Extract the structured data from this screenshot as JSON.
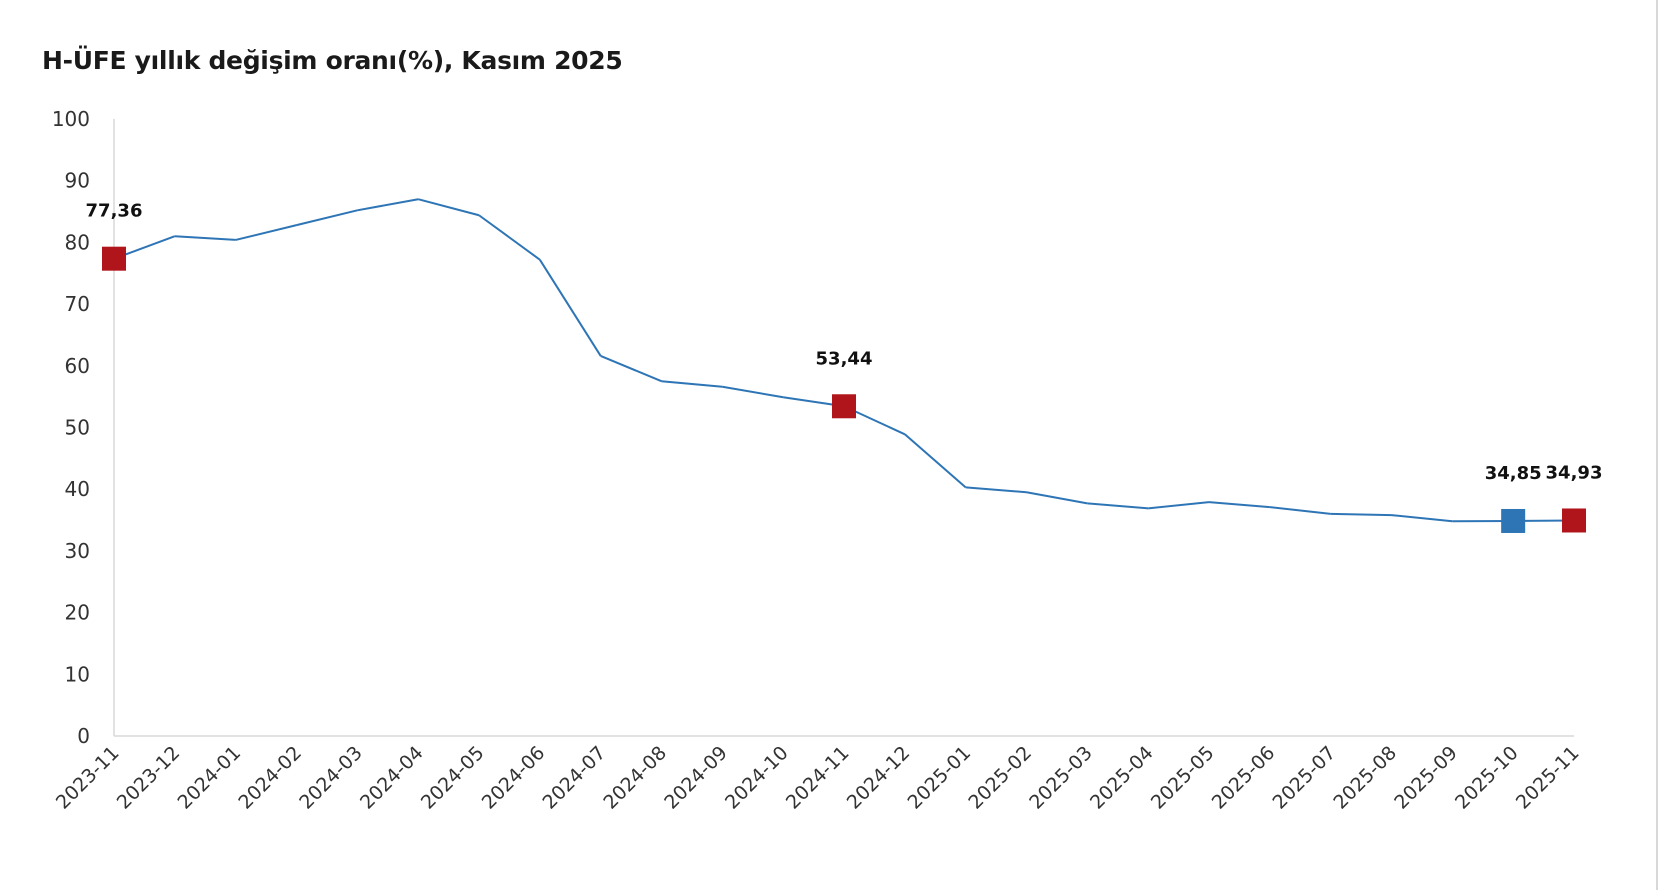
{
  "chart_data": {
    "type": "line",
    "title": "H-ÜFE yıllık değişim oranı(%), Kasım 2025",
    "xlabel": "",
    "ylabel": "",
    "ylim": [
      0,
      100
    ],
    "yticks": [
      "0",
      "10",
      "20",
      "30",
      "40",
      "50",
      "60",
      "70",
      "80",
      "90",
      "100"
    ],
    "grid": false,
    "categories": [
      "2023-11",
      "2023-12",
      "2024-01",
      "2024-02",
      "2024-03",
      "2024-04",
      "2024-05",
      "2024-06",
      "2024-07",
      "2024-08",
      "2024-09",
      "2024-10",
      "2024-11",
      "2024-12",
      "2025-01",
      "2025-02",
      "2025-03",
      "2025-04",
      "2025-05",
      "2025-06",
      "2025-07",
      "2025-08",
      "2025-09",
      "2025-10",
      "2025-11"
    ],
    "values": [
      77.36,
      81.0,
      80.4,
      82.8,
      85.2,
      87.0,
      84.4,
      77.2,
      61.6,
      57.5,
      56.6,
      54.9,
      53.44,
      48.9,
      40.3,
      39.5,
      37.7,
      36.9,
      37.9,
      37.1,
      36.0,
      35.8,
      34.8,
      34.85,
      34.93
    ],
    "line_color": "#2e75b6",
    "highlights": [
      {
        "index": 0,
        "label": "77,36",
        "color": "#b0151b"
      },
      {
        "index": 12,
        "label": "53,44",
        "color": "#b0151b"
      },
      {
        "index": 23,
        "label": "34,85",
        "color": "#2e75b6"
      },
      {
        "index": 24,
        "label": "34,93",
        "color": "#b0151b"
      }
    ]
  }
}
